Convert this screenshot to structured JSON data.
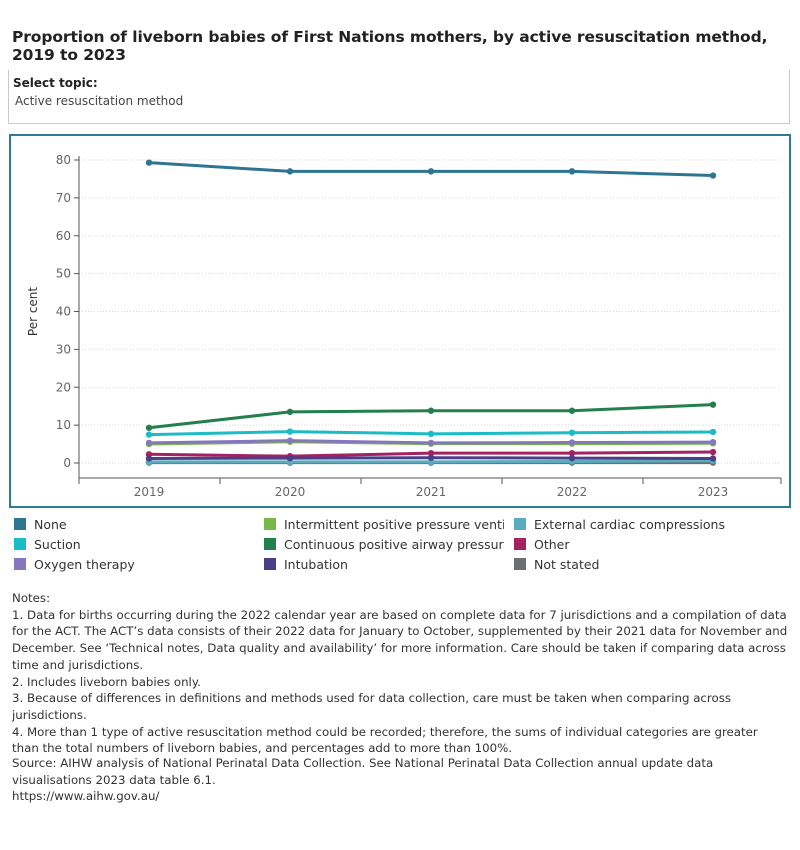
{
  "title": "Proportion of liveborn babies of First Nations mothers, by active resuscitation method, 2019 to 2023",
  "filter": {
    "label": "Select topic:",
    "value": "Active resuscitation method"
  },
  "chart_data": {
    "type": "line",
    "title": "Proportion of liveborn babies of First Nations mothers, by active resuscitation method, 2019 to 2023",
    "xlabel": "",
    "ylabel": "Per cent",
    "categories": [
      "2019",
      "2020",
      "2021",
      "2022",
      "2023"
    ],
    "y_ticks": [
      "0",
      "10",
      "20",
      "30",
      "40",
      "50",
      "60",
      "70",
      "80"
    ],
    "ylim": [
      0,
      82
    ],
    "grid": true,
    "legend_position": "bottom",
    "series": [
      {
        "name": "None",
        "color": "#2e7591",
        "values": [
          79.3,
          77.0,
          77.0,
          77.0,
          75.9
        ]
      },
      {
        "name": "Suction",
        "color": "#1bbcc6",
        "values": [
          7.5,
          8.3,
          7.7,
          8.0,
          8.2
        ]
      },
      {
        "name": "Oxygen therapy",
        "color": "#8576be",
        "values": [
          5.3,
          5.9,
          5.3,
          5.4,
          5.5
        ]
      },
      {
        "name": "Intermittent positive pressure ventilat..",
        "color": "#79b748",
        "values": [
          5.0,
          5.6,
          5.1,
          5.1,
          5.2
        ]
      },
      {
        "name": "Continuous positive airway pressure",
        "color": "#23804e",
        "values": [
          9.3,
          13.5,
          13.8,
          13.8,
          15.4
        ]
      },
      {
        "name": "Intubation",
        "color": "#4a3f86",
        "values": [
          1.2,
          1.3,
          1.4,
          1.3,
          1.2
        ]
      },
      {
        "name": "External cardiac compressions",
        "color": "#5aabc0",
        "values": [
          0.3,
          0.3,
          0.3,
          0.4,
          0.6
        ]
      },
      {
        "name": "Other",
        "color": "#a3225f",
        "values": [
          2.3,
          1.8,
          2.6,
          2.6,
          2.9
        ]
      },
      {
        "name": "Not stated",
        "color": "#6a6f74",
        "values": [
          0.1,
          0.1,
          0.1,
          0.1,
          0.1
        ]
      }
    ]
  },
  "notes": {
    "heading": "Notes:",
    "items": [
      "1. Data for births occurring during the 2022 calendar year are based on complete data for 7 jurisdictions and a compilation of data for the ACT. The ACT’s data consists of their 2022 data for January to October, supplemented by their 2021 data for November and December. See ‘Technical notes, Data quality and availability’ for more information. Care should be taken if comparing data across time and jurisdictions.",
      "2. Includes liveborn babies only.",
      "3. Because of differences in definitions and methods used for data collection, care must be taken when comparing across jurisdictions.",
      "4. More than 1 type of active resuscitation method could be recorded; therefore, the sums of individual categories are greater than the total numbers of liveborn babies, and percentages add to more than 100%."
    ]
  },
  "source": {
    "text": "Source: AIHW analysis of National Perinatal Data Collection. See National Perinatal Data Collection annual update data visualisations 2023 data table 6.1.",
    "url": "https://www.aihw.gov.au/"
  }
}
